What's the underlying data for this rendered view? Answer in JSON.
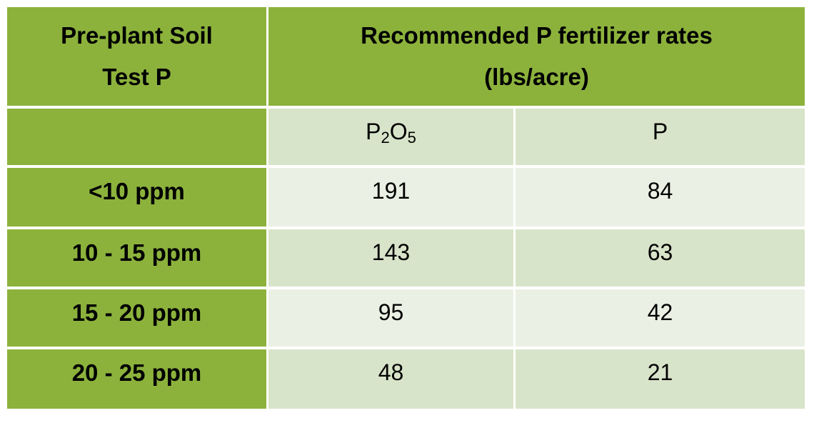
{
  "table": {
    "header": {
      "col1": [
        "Pre-plant Soil",
        "Test P"
      ],
      "col2": [
        "Recommended P fertilizer rates",
        "(lbs/acre)"
      ]
    },
    "subheader": {
      "p2o5": {
        "base1": "P",
        "sub1": "2",
        "base2": "O",
        "sub2": "5"
      },
      "p": "P"
    },
    "rows": [
      {
        "range": "<10 ppm",
        "p2o5": "191",
        "p": "84"
      },
      {
        "range": "10 - 15 ppm",
        "p2o5": "143",
        "p": "63"
      },
      {
        "range": "15 - 20 ppm",
        "p2o5": "95",
        "p": "42"
      },
      {
        "range": "20 - 25 ppm",
        "p2o5": "48",
        "p": "21"
      }
    ]
  }
}
